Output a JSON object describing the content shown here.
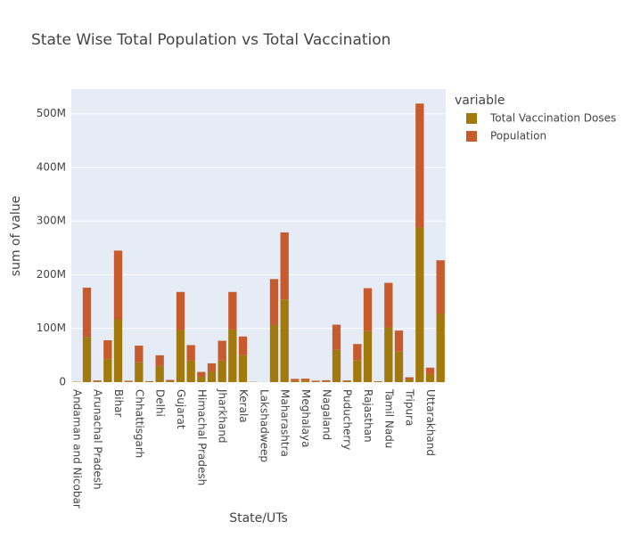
{
  "chart_data": {
    "type": "stacked_bar",
    "title": "State Wise Total Population vs Total Vaccination",
    "x_label": "State/UTs",
    "y_label": "sum of value",
    "legend_title": "variable",
    "categories": [
      "Andaman and Nicobar",
      null,
      "Arunachal Pradesh",
      null,
      "Bihar",
      null,
      "Chhattisgarh",
      null,
      "Delhi",
      null,
      "Gujarat",
      null,
      "Himachal Pradesh",
      null,
      "Jharkhand",
      null,
      "Kerala",
      null,
      "Lakshadweep",
      null,
      "Maharashtra",
      null,
      "Meghalaya",
      null,
      "Nagaland",
      null,
      "Puducherry",
      null,
      "Rajasthan",
      null,
      "Tamil Nadu",
      null,
      "Tripura",
      null,
      "Uttarakhand",
      null
    ],
    "series": [
      {
        "name": "Total Vaccination Doses",
        "color": "#a2790d",
        "values": [
          500000,
          84000000,
          1500000,
          43000000,
          117000000,
          1400000,
          37000000,
          800000,
          30000000,
          2500000,
          97000000,
          40000000,
          10000000,
          20000000,
          40000000,
          98000000,
          50000000,
          300000,
          100000,
          107000000,
          154000000,
          3000000,
          3000000,
          1500000,
          1500000,
          60000000,
          1800000,
          41000000,
          95000000,
          1000000,
          102000000,
          57000000,
          5000000,
          288000000,
          15000000,
          127000000
        ]
      },
      {
        "name": "Population",
        "color": "#c75b2e",
        "values": [
          400000,
          92000000,
          1600000,
          35000000,
          128000000,
          1200000,
          31000000,
          1000000,
          20000000,
          1600000,
          71000000,
          29000000,
          9000000,
          15000000,
          37000000,
          70000000,
          35000000,
          300000,
          100000,
          85000000,
          125000000,
          3000000,
          3500000,
          1200000,
          2000000,
          47000000,
          1500000,
          30000000,
          80000000,
          700000,
          83000000,
          39000000,
          4000000,
          231000000,
          12000000,
          100000000
        ]
      }
    ],
    "ylim": [
      0,
      546000000
    ],
    "yticks": [
      0,
      {
        "value": 100000000,
        "label": "100M"
      },
      {
        "value": 200000000,
        "label": "200M"
      },
      {
        "value": 300000000,
        "label": "300M"
      },
      {
        "value": 400000000,
        "label": "400M"
      },
      {
        "value": 500000000,
        "label": "500M"
      }
    ],
    "grid": true,
    "legend_position": "right"
  }
}
